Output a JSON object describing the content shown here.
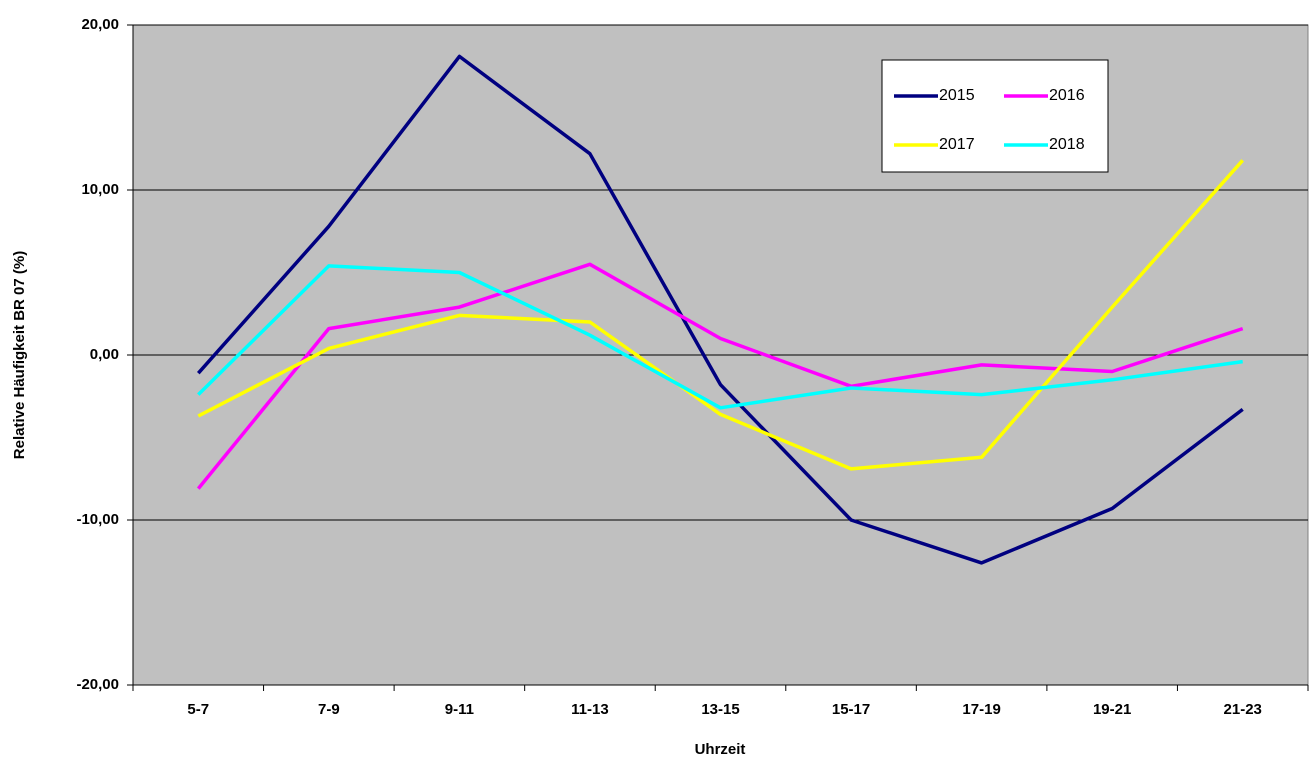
{
  "chart_data": {
    "type": "line",
    "x_label": "Uhrzeit",
    "y_label": "Relative Häufigkeit BR 07 (%)",
    "categories": [
      "5-7",
      "7-9",
      "9-11",
      "11-13",
      "13-15",
      "15-17",
      "17-19",
      "19-21",
      "21-23"
    ],
    "series": [
      {
        "name": "2015",
        "color": "#000080",
        "values": [
          -1.1,
          7.8,
          18.1,
          12.2,
          -1.8,
          -10.0,
          -12.6,
          -9.3,
          -3.3
        ]
      },
      {
        "name": "2016",
        "color": "#ff00ff",
        "values": [
          -8.1,
          1.6,
          2.9,
          5.5,
          1.0,
          -1.9,
          -0.6,
          -1.0,
          1.6
        ]
      },
      {
        "name": "2017",
        "color": "#ffff00",
        "values": [
          -3.7,
          0.4,
          2.4,
          2.0,
          -3.6,
          -6.9,
          -6.2,
          2.9,
          11.8
        ]
      },
      {
        "name": "2018",
        "color": "#00ffff",
        "values": [
          -2.4,
          5.4,
          5.0,
          1.2,
          -3.2,
          -2.0,
          -2.4,
          -1.5,
          -0.4
        ]
      }
    ],
    "ylim": [
      -20,
      20
    ],
    "yticks": [
      {
        "value": -20,
        "label": "-20,00"
      },
      {
        "value": -10,
        "label": "-10,00"
      },
      {
        "value": 0,
        "label": "0,00"
      },
      {
        "value": 10,
        "label": "10,00"
      },
      {
        "value": 20,
        "label": "20,00"
      }
    ],
    "grid": true,
    "legend_position": "top-right",
    "plot_background": "#c0c0c0"
  }
}
